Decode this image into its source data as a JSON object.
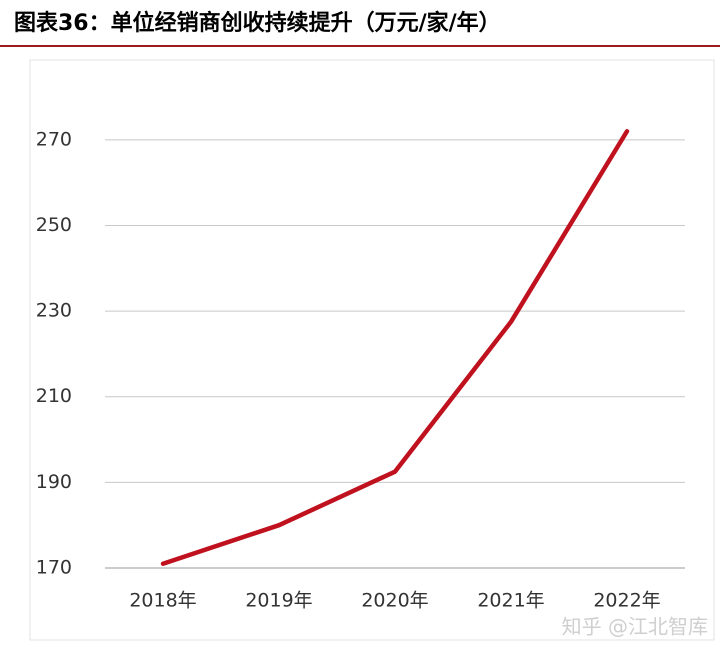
{
  "chart_data": {
    "type": "line",
    "title": "图表36：单位经销商创收持续提升（万元/家/年）",
    "categories": [
      "2018年",
      "2019年",
      "2020年",
      "2021年",
      "2022年"
    ],
    "series": [
      {
        "color": "#c0111f",
        "values": [
          171,
          180,
          192.5,
          227.5,
          272
        ]
      }
    ],
    "ylim": [
      170,
      280
    ],
    "yticks": [
      170,
      190,
      210,
      230,
      250,
      270
    ],
    "grid": true,
    "watermark": "知乎 @江北智库"
  }
}
